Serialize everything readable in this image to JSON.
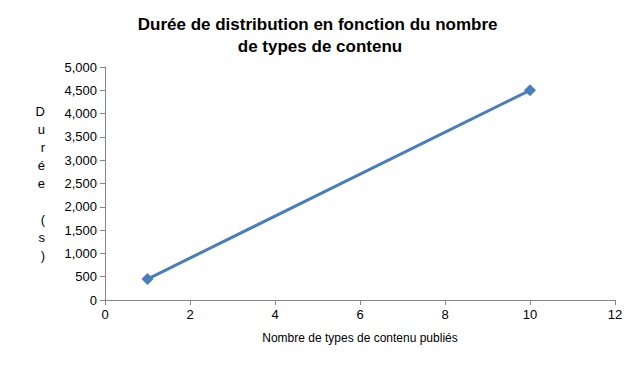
{
  "chart_data": {
    "type": "line",
    "title": "Durée de distribution en fonction du nombre de types de contenu",
    "x_label": "Nombre de types de contenu publiés",
    "y_label": "Durée (s)",
    "x": [
      1,
      10
    ],
    "values": [
      450,
      4500
    ],
    "color": "#4a7ebb",
    "marker": "diamond",
    "xlim": [
      0,
      12
    ],
    "xticks": [
      0,
      2,
      4,
      6,
      8,
      10,
      12
    ],
    "ylim": [
      0,
      5000
    ],
    "yticks": [
      0,
      500,
      1000,
      1500,
      2000,
      2500,
      3000,
      3500,
      4000,
      4500,
      5000
    ],
    "grid": false
  }
}
